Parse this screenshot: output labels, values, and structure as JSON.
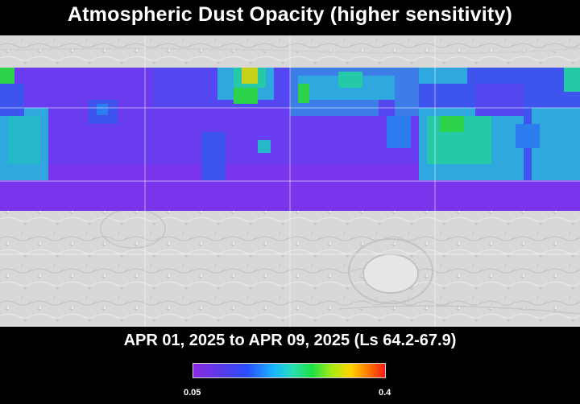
{
  "title": "Atmospheric Dust Opacity (higher sensitivity)",
  "date_range": "APR 01, 2025 to APR 09, 2025 (Ls 64.2-67.9)",
  "colorbar": {
    "min_label": "0.05",
    "max_label": "0.4",
    "stops": [
      "#8a2be2",
      "#2a4cff",
      "#19b6ff",
      "#27e0b0",
      "#1ee040",
      "#a6ea14",
      "#ffd400",
      "#ff7a00",
      "#ff1a1a"
    ]
  },
  "colors": {
    "low_opacity": "#6a3cf0",
    "mid_low": "#3d55ee",
    "mid": "#2fa8e0",
    "mid_high": "#25c9a8",
    "high": "#2bd24a",
    "peak": "#c8d21a",
    "terrain": "#d9d9d9"
  }
}
